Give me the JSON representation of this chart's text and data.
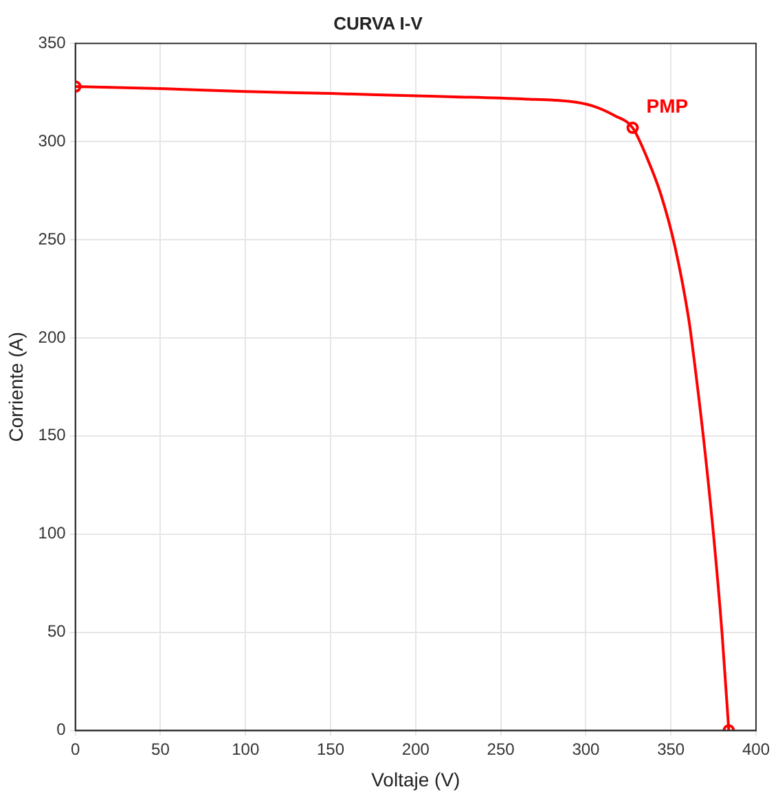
{
  "chart_data": {
    "type": "line",
    "title": "CURVA I-V",
    "xlabel": "Voltaje (V)",
    "ylabel": "Corriente (A)",
    "xlim": [
      0,
      400
    ],
    "xticks": [
      0,
      50,
      100,
      150,
      200,
      250,
      300,
      350,
      400
    ],
    "ylim": [
      0,
      350
    ],
    "yticks": [
      0,
      50,
      100,
      150,
      200,
      250,
      300,
      350
    ],
    "grid": true,
    "legend": false,
    "series": [
      {
        "color": "#ff0000",
        "marker": "none",
        "x": [
          0,
          50,
          100,
          150,
          200,
          222,
          263,
          290,
          303.5,
          317,
          327.5,
          336,
          344,
          352.5,
          360.5,
          362,
          369,
          375,
          380,
          384
        ],
        "values": [
          328,
          327,
          325.5,
          324.5,
          323.3,
          322.8,
          321.7,
          320.5,
          318.3,
          313.2,
          307,
          291.6,
          273.3,
          246,
          209.4,
          200,
          150,
          100,
          50,
          0
        ]
      },
      {
        "type": "scatter",
        "color": "#ff0000",
        "marker": "circle",
        "x": [
          0,
          327.5,
          384
        ],
        "values": [
          328,
          307,
          0
        ]
      }
    ],
    "annotations": [
      {
        "text": "PMP",
        "x": 327.5,
        "y": 307
      }
    ]
  }
}
